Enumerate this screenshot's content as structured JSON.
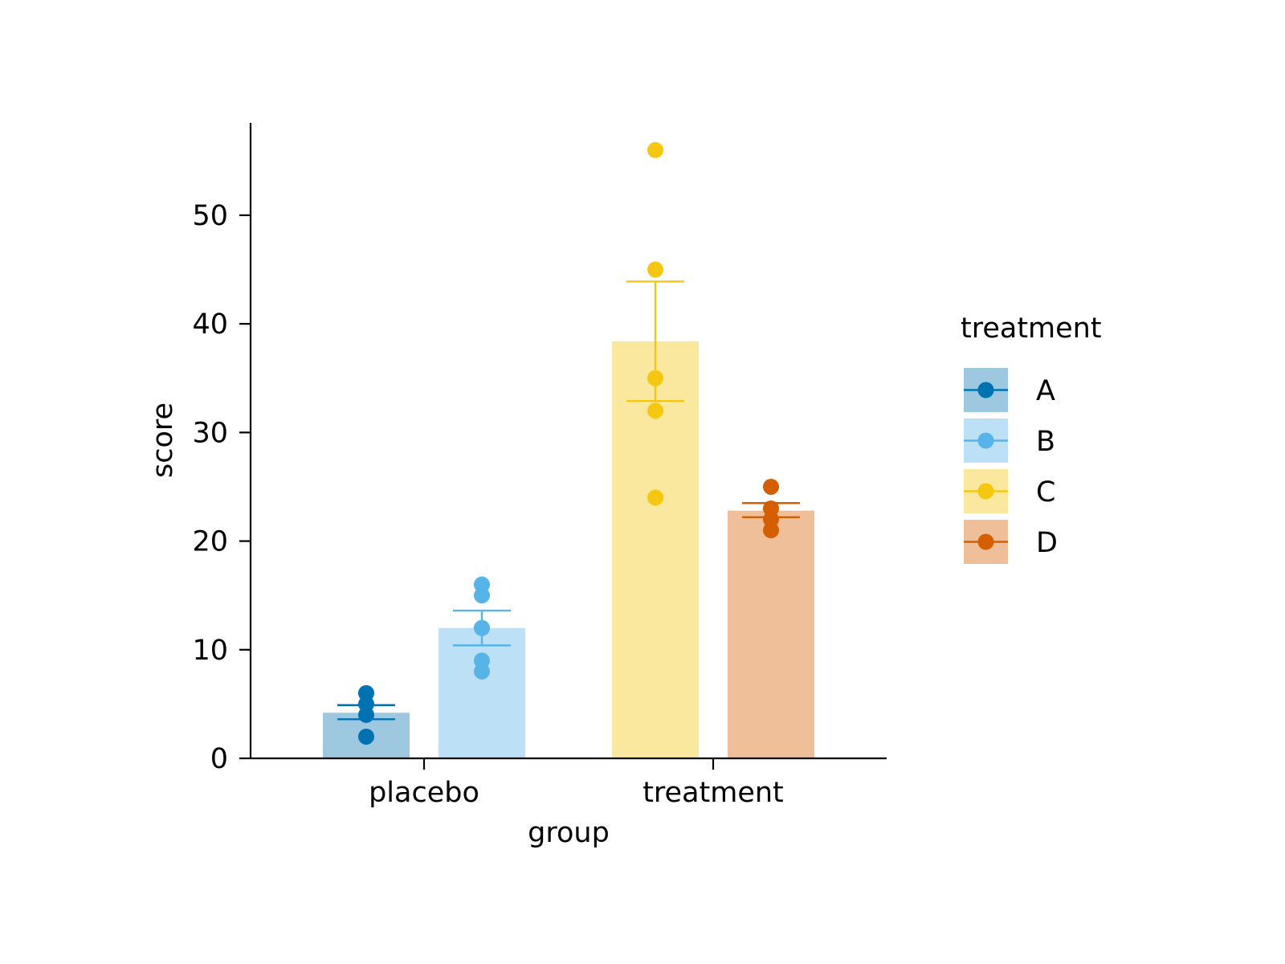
{
  "chart_data": {
    "type": "bar",
    "xlabel": "group",
    "ylabel": "score",
    "ylim": [
      0,
      58.5
    ],
    "yticks": [
      0,
      10,
      20,
      30,
      40,
      50
    ],
    "grid": false,
    "legend_position": "right",
    "categories": [
      "placebo",
      "treatment"
    ],
    "legend": {
      "title": "treatment",
      "entries": [
        {
          "label": "A",
          "color": "#0072B2",
          "fill": "#9DC8E0"
        },
        {
          "label": "B",
          "color": "#56B4E9",
          "fill": "#BCE1F6"
        },
        {
          "label": "C",
          "color": "#F5C710",
          "fill": "#FAE89F"
        },
        {
          "label": "D",
          "color": "#D55E00",
          "fill": "#EEBF99"
        }
      ]
    },
    "series": [
      {
        "name": "A",
        "category": "placebo",
        "mean": 4.2,
        "error": [
          3.6,
          4.9
        ],
        "points": [
          2,
          4,
          5,
          6
        ]
      },
      {
        "name": "B",
        "category": "placebo",
        "mean": 12.0,
        "error": [
          10.4,
          13.6
        ],
        "points": [
          8,
          9,
          12,
          15,
          16
        ]
      },
      {
        "name": "C",
        "category": "treatment",
        "mean": 38.4,
        "error": [
          32.9,
          43.9
        ],
        "points": [
          24,
          32,
          35,
          45,
          56
        ]
      },
      {
        "name": "D",
        "category": "treatment",
        "mean": 22.8,
        "error": [
          22.2,
          23.5
        ],
        "points": [
          21,
          22,
          23,
          25
        ]
      }
    ]
  }
}
